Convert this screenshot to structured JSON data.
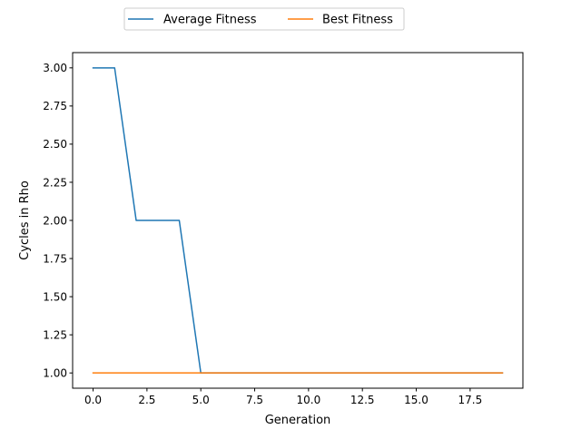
{
  "chart_data": {
    "type": "line",
    "xlabel": "Generation",
    "ylabel": "Cycles in Rho",
    "xlim": [
      -0.95,
      19.95
    ],
    "ylim": [
      0.9,
      3.1
    ],
    "xticks": [
      0,
      2.5,
      5,
      7.5,
      10,
      12.5,
      15,
      17.5
    ],
    "xtick_labels": [
      "0.0",
      "2.5",
      "5.0",
      "7.5",
      "10.0",
      "12.5",
      "15.0",
      "17.5"
    ],
    "yticks": [
      1.0,
      1.25,
      1.5,
      1.75,
      2.0,
      2.25,
      2.5,
      2.75,
      3.0
    ],
    "ytick_labels": [
      "1.00",
      "1.25",
      "1.50",
      "1.75",
      "2.00",
      "2.25",
      "2.50",
      "2.75",
      "3.00"
    ],
    "grid": false,
    "legend_position": "top-center, outside plot",
    "x": [
      0,
      1,
      2,
      3,
      4,
      5,
      6,
      7,
      8,
      9,
      10,
      11,
      12,
      13,
      14,
      15,
      16,
      17,
      18,
      19
    ],
    "series": [
      {
        "name": "Average Fitness",
        "color": "#1f77b4",
        "values": [
          3,
          3,
          2,
          2,
          2,
          1,
          1,
          1,
          1,
          1,
          1,
          1,
          1,
          1,
          1,
          1,
          1,
          1,
          1,
          1
        ]
      },
      {
        "name": "Best Fitness",
        "color": "#ff7f0e",
        "values": [
          1,
          1,
          1,
          1,
          1,
          1,
          1,
          1,
          1,
          1,
          1,
          1,
          1,
          1,
          1,
          1,
          1,
          1,
          1,
          1
        ]
      }
    ]
  }
}
